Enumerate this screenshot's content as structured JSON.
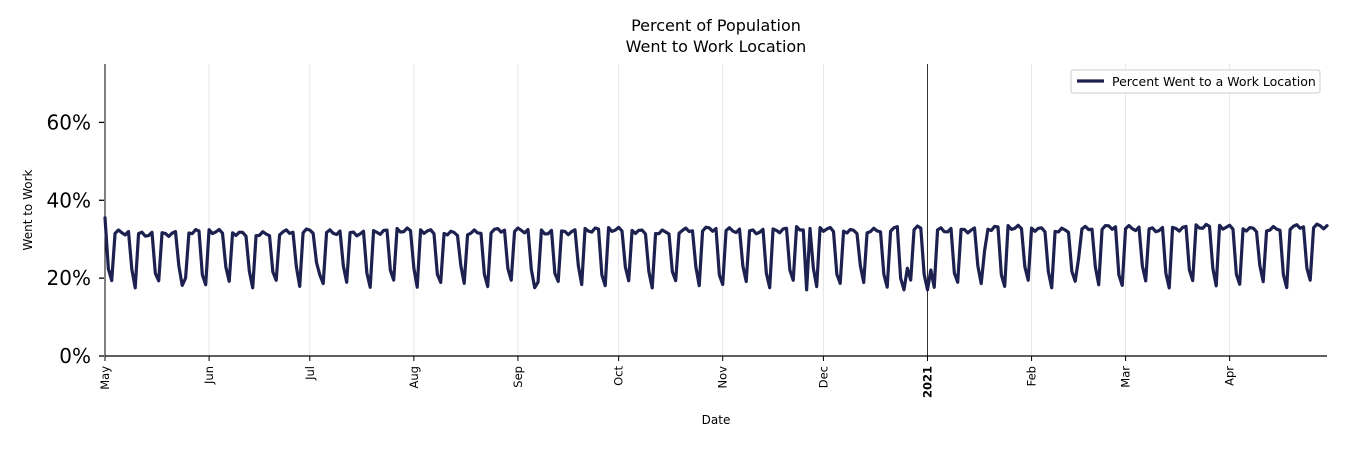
{
  "chart_data": {
    "type": "line",
    "title_lines": [
      "Percent of Population",
      "Went to Work Location"
    ],
    "xlabel": "Date",
    "ylabel": "Went to Work",
    "ylim": [
      0,
      0.75
    ],
    "yticks": [
      0,
      0.2,
      0.4,
      0.6
    ],
    "ytick_labels": [
      "0%",
      "20%",
      "40%",
      "60%"
    ],
    "x_start": "2020-05-01",
    "x_end": "2021-04-30",
    "x_ticks": [
      {
        "date": "2020-05-01",
        "label": "May",
        "bold": false
      },
      {
        "date": "2020-06-01",
        "label": "Jun",
        "bold": false
      },
      {
        "date": "2020-07-01",
        "label": "Jul",
        "bold": false
      },
      {
        "date": "2020-08-01",
        "label": "Aug",
        "bold": false
      },
      {
        "date": "2020-09-01",
        "label": "Sep",
        "bold": false
      },
      {
        "date": "2020-10-01",
        "label": "Oct",
        "bold": false
      },
      {
        "date": "2020-11-01",
        "label": "Nov",
        "bold": false
      },
      {
        "date": "2020-12-01",
        "label": "Dec",
        "bold": false
      },
      {
        "date": "2021-01-01",
        "label": "2021",
        "bold": true
      },
      {
        "date": "2021-02-01",
        "label": "Feb",
        "bold": false
      },
      {
        "date": "2021-03-01",
        "label": "Mar",
        "bold": false
      },
      {
        "date": "2021-04-01",
        "label": "Apr",
        "bold": false
      }
    ],
    "year_marker": "2021-01-01",
    "legend": {
      "placement": "top-right",
      "label": "Percent Went to a Work Location"
    },
    "series": [
      {
        "name": "Percent Went to a Work Location",
        "color": "#1d2150",
        "weekly_pattern": {
          "start_weekday": "Friday",
          "weekday_level_start": 0.315,
          "weekday_level_end": 0.33,
          "saturday_level": 0.22,
          "sunday_level": 0.185
        },
        "annotations": [
          {
            "date": "2020-05-01",
            "value": 0.355
          },
          {
            "date": "2020-05-25",
            "value": 0.2
          },
          {
            "date": "2020-07-03",
            "value": 0.24
          },
          {
            "date": "2020-09-07",
            "value": 0.19
          },
          {
            "date": "2020-11-26",
            "value": 0.17
          },
          {
            "date": "2020-12-24",
            "value": 0.2
          },
          {
            "date": "2020-12-25",
            "value": 0.17
          },
          {
            "date": "2020-12-31",
            "value": 0.21
          },
          {
            "date": "2021-01-01",
            "value": 0.17
          },
          {
            "date": "2021-01-18",
            "value": 0.27
          },
          {
            "date": "2021-02-15",
            "value": 0.25
          }
        ]
      }
    ]
  }
}
